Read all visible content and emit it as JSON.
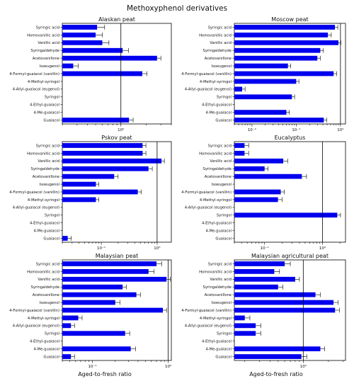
{
  "figure": {
    "title": "Methoxyphenol derivatives",
    "xlabel_left": "Aged-to-fresh ratio",
    "xlabel_right": "Aged-to-fresh ratio",
    "bar_color": "#0000ee",
    "refline_color": "#000000"
  },
  "chart_data": [
    {
      "type": "bar",
      "orientation": "horizontal",
      "title": "Alaskan peat",
      "xscale": "log",
      "xlim": [
        0.2,
        4
      ],
      "xtick_labels": [
        "10^0"
      ],
      "reference_line": 1,
      "categories": [
        "Syringic acid",
        "Homovanillic acid",
        "Vanillic acid",
        "Syringaldehyde",
        "Acetovanillone",
        "Isoeugenol",
        "4-Formyl-guaiacol (vanillin)",
        "4-Methyl-syringol",
        "4-Allyl-guaiacol (eugenol)",
        "Syringol",
        "4-Ethyl-guaiacol",
        "4-Me-guaiacol",
        "Guaiacol"
      ],
      "values": [
        0.52,
        0.5,
        0.6,
        1.05,
        2.7,
        0.27,
        1.8,
        null,
        null,
        null,
        null,
        null,
        1.25
      ],
      "errors": [
        0.12,
        0.1,
        0.12,
        0.18,
        0.3,
        0.04,
        0.25,
        null,
        null,
        null,
        null,
        null,
        0.15
      ]
    },
    {
      "type": "bar",
      "orientation": "horizontal",
      "title": "Moscow peat",
      "xscale": "log",
      "xlim": [
        0.004,
        1.3
      ],
      "xtick_labels": [
        "10^-2",
        "10^-1",
        "10^0"
      ],
      "reference_line": 1,
      "categories": [
        "Syringic acid",
        "Homovanillic acid",
        "Vanillic acid",
        "Syringaldehyde",
        "Acetovanillone",
        "Isoeugenol",
        "4-Formyl-guaiacol (vanillin)",
        "4-Methyl-syringol",
        "4-Allyl-guaiacol (eugenol)",
        "Syringol",
        "4-Ethyl-guaiacol",
        "4-Me-guaiacol",
        "Guaiacol"
      ],
      "values": [
        0.75,
        0.52,
        0.9,
        0.35,
        0.3,
        0.065,
        0.7,
        0.1,
        0.006,
        0.08,
        null,
        0.06,
        0.42
      ],
      "errors": [
        0.12,
        0.1,
        0.12,
        0.06,
        0.05,
        0.01,
        0.12,
        0.015,
        0.001,
        0.012,
        null,
        0.01,
        0.07
      ]
    },
    {
      "type": "bar",
      "orientation": "horizontal",
      "title": "Pskov peat",
      "xscale": "log",
      "xlim": [
        0.02,
        1.8
      ],
      "xtick_labels": [
        "10^-1",
        "10^0"
      ],
      "reference_line": 1,
      "categories": [
        "Syringic acid",
        "Homovanillic acid",
        "Vanillic acid",
        "Syringaldehyde",
        "Acetovanillone",
        "Isoeugenol",
        "4-Formyl-guaiacol (vanillin)",
        "4-Methyl-syringol",
        "4-Allyl-guaiacol (eugenol)",
        "Syringol",
        "4-Ethyl-guaiacol",
        "4-Me-guaiacol",
        "Guaiacol"
      ],
      "values": [
        0.55,
        0.55,
        1.2,
        0.7,
        0.17,
        0.08,
        0.45,
        0.08,
        null,
        null,
        null,
        null,
        0.025
      ],
      "errors": [
        0.08,
        0.08,
        0.15,
        0.12,
        0.03,
        0.01,
        0.07,
        0.01,
        null,
        null,
        null,
        null,
        0.004
      ]
    },
    {
      "type": "bar",
      "orientation": "horizontal",
      "title": "Eucalyptus",
      "xscale": "log",
      "xlim": [
        0.03,
        2.5
      ],
      "xtick_labels": [
        "10^-1",
        "10^0"
      ],
      "reference_line": 1,
      "categories": [
        "Syringic acid",
        "Homovanillic acid",
        "Vanillic acid",
        "Syringaldehyde",
        "Acetovanillone",
        "Isoeugenol",
        "4-Formyl-guaiacol (vanillin)",
        "4-Methyl-syringol",
        "4-Allyl-guaiacol (eugenol)",
        "Syringol",
        "4-Ethyl-guaiacol",
        "4-Me-guaiacol",
        "Guaiacol"
      ],
      "values": [
        0.045,
        0.045,
        0.21,
        0.1,
        0.44,
        null,
        0.19,
        0.17,
        null,
        1.8,
        null,
        null,
        null
      ],
      "errors": [
        0.008,
        0.008,
        0.04,
        0.015,
        0.09,
        null,
        0.03,
        0.03,
        null,
        0.25,
        null,
        null,
        null
      ]
    },
    {
      "type": "bar",
      "orientation": "horizontal",
      "title": "Malaysian peat",
      "xscale": "log",
      "xlim": [
        0.04,
        1.1
      ],
      "xtick_labels": [
        "10^-1",
        "10^0"
      ],
      "reference_line": 1,
      "categories": [
        "Syringic acid",
        "Homovanillic acid",
        "Vanillic acid",
        "Syringaldehyde",
        "Acetovanillone",
        "Isoeugenol",
        "4-Formyl-guaiacol (vanillin)",
        "4-Methyl-syringol",
        "4-Allyl-guaiacol (eugenol)",
        "Syringol",
        "4-Ethyl-guaiacol",
        "4-Me-guaiacol",
        "Guaiacol"
      ],
      "values": [
        0.7,
        0.55,
        0.95,
        0.25,
        0.38,
        0.2,
        0.85,
        0.065,
        0.052,
        0.27,
        null,
        0.32,
        0.052
      ],
      "errors": [
        0.12,
        0.1,
        0.12,
        0.03,
        0.05,
        0.03,
        0.1,
        0.008,
        0.006,
        0.04,
        null,
        0.05,
        0.006
      ]
    },
    {
      "type": "bar",
      "orientation": "horizontal",
      "title": "Malaysian agricultural peat",
      "xscale": "log",
      "xlim": [
        0.15,
        3.2
      ],
      "xtick_labels": [
        "10^0"
      ],
      "reference_line": 1,
      "categories": [
        "Syringic acid",
        "Homovanillic acid",
        "Vanillic acid",
        "Syringaldehyde",
        "Acetovanillone",
        "Isoeugenol",
        "4-Formyl-guaiacol (vanillin)",
        "4-Methyl-syringol",
        "4-Allyl-guaiacol (eugenol)",
        "Syringol",
        "4-Ethyl-guaiacol",
        "4-Me-guaiacol",
        "Guaiacol"
      ],
      "values": [
        0.6,
        0.45,
        0.8,
        0.5,
        1.4,
        2.3,
        2.4,
        0.2,
        0.27,
        0.27,
        null,
        1.6,
        0.95
      ],
      "errors": [
        0.1,
        0.07,
        0.1,
        0.07,
        0.2,
        0.3,
        0.3,
        0.03,
        0.04,
        0.04,
        null,
        0.2,
        0.15
      ]
    }
  ]
}
